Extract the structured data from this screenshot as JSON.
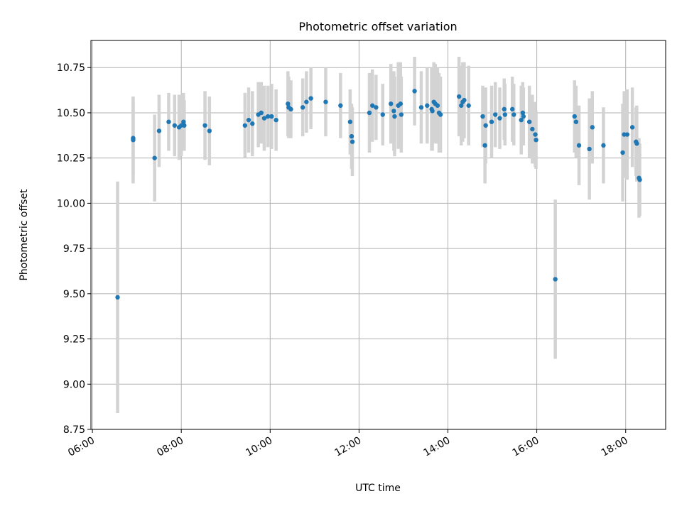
{
  "chart_data": {
    "type": "scatter",
    "title": "Photometric offset variation",
    "xlabel": "UTC time",
    "ylabel": "Photometric offset",
    "x_unit": "time of day (UTC)",
    "xlim": [
      "05:58",
      "18:54"
    ],
    "ylim": [
      8.75,
      10.9
    ],
    "xticks": [
      "06:00",
      "08:00",
      "10:00",
      "12:00",
      "14:00",
      "16:00",
      "18:00"
    ],
    "yticks": [
      "8.75",
      "9.00",
      "9.25",
      "9.50",
      "9.75",
      "10.00",
      "10.25",
      "10.50",
      "10.75"
    ],
    "grid": true,
    "legend": "none",
    "colors": {
      "point": "#1f77b4",
      "errorbar": "#d3d3d3",
      "grid": "#b0b0b0"
    },
    "points": [
      {
        "t": "06:34",
        "y": 9.48,
        "err": 0.64
      },
      {
        "t": "06:55",
        "y": 10.35,
        "err": 0.24
      },
      {
        "t": "06:55",
        "y": 10.36,
        "err": 0.2
      },
      {
        "t": "07:24",
        "y": 10.25,
        "err": 0.24
      },
      {
        "t": "07:30",
        "y": 10.4,
        "err": 0.2
      },
      {
        "t": "07:43",
        "y": 10.45,
        "err": 0.16
      },
      {
        "t": "07:51",
        "y": 10.43,
        "err": 0.17
      },
      {
        "t": "07:57",
        "y": 10.42,
        "err": 0.18
      },
      {
        "t": "08:00",
        "y": 10.43,
        "err": 0.17
      },
      {
        "t": "08:03",
        "y": 10.45,
        "err": 0.16
      },
      {
        "t": "08:04",
        "y": 10.43,
        "err": 0.14
      },
      {
        "t": "08:32",
        "y": 10.43,
        "err": 0.19
      },
      {
        "t": "08:38",
        "y": 10.4,
        "err": 0.19
      },
      {
        "t": "09:26",
        "y": 10.43,
        "err": 0.18
      },
      {
        "t": "09:31",
        "y": 10.46,
        "err": 0.18
      },
      {
        "t": "09:36",
        "y": 10.44,
        "err": 0.18
      },
      {
        "t": "09:44",
        "y": 10.49,
        "err": 0.18
      },
      {
        "t": "09:48",
        "y": 10.5,
        "err": 0.17
      },
      {
        "t": "09:52",
        "y": 10.47,
        "err": 0.18
      },
      {
        "t": "09:57",
        "y": 10.48,
        "err": 0.17
      },
      {
        "t": "10:02",
        "y": 10.48,
        "err": 0.18
      },
      {
        "t": "10:08",
        "y": 10.46,
        "err": 0.17
      },
      {
        "t": "10:24",
        "y": 10.55,
        "err": 0.18
      },
      {
        "t": "10:25",
        "y": 10.53,
        "err": 0.17
      },
      {
        "t": "10:28",
        "y": 10.52,
        "err": 0.16
      },
      {
        "t": "10:44",
        "y": 10.53,
        "err": 0.16
      },
      {
        "t": "10:49",
        "y": 10.56,
        "err": 0.17
      },
      {
        "t": "10:55",
        "y": 10.58,
        "err": 0.17
      },
      {
        "t": "11:15",
        "y": 10.56,
        "err": 0.19
      },
      {
        "t": "11:35",
        "y": 10.54,
        "err": 0.18
      },
      {
        "t": "11:48",
        "y": 10.45,
        "err": 0.18
      },
      {
        "t": "11:50",
        "y": 10.37,
        "err": 0.18
      },
      {
        "t": "11:51",
        "y": 10.34,
        "err": 0.19
      },
      {
        "t": "12:14",
        "y": 10.5,
        "err": 0.22
      },
      {
        "t": "12:18",
        "y": 10.54,
        "err": 0.2
      },
      {
        "t": "12:23",
        "y": 10.53,
        "err": 0.18
      },
      {
        "t": "12:32",
        "y": 10.49,
        "err": 0.17
      },
      {
        "t": "12:43",
        "y": 10.55,
        "err": 0.22
      },
      {
        "t": "12:47",
        "y": 10.51,
        "err": 0.22
      },
      {
        "t": "12:48",
        "y": 10.48,
        "err": 0.22
      },
      {
        "t": "12:53",
        "y": 10.54,
        "err": 0.24
      },
      {
        "t": "12:56",
        "y": 10.55,
        "err": 0.23
      },
      {
        "t": "12:57",
        "y": 10.49,
        "err": 0.21
      },
      {
        "t": "13:15",
        "y": 10.62,
        "err": 0.19
      },
      {
        "t": "13:24",
        "y": 10.53,
        "err": 0.2
      },
      {
        "t": "13:32",
        "y": 10.54,
        "err": 0.21
      },
      {
        "t": "13:38",
        "y": 10.52,
        "err": 0.23
      },
      {
        "t": "13:39",
        "y": 10.51,
        "err": 0.22
      },
      {
        "t": "13:41",
        "y": 10.56,
        "err": 0.22
      },
      {
        "t": "13:43",
        "y": 10.55,
        "err": 0.22
      },
      {
        "t": "13:46",
        "y": 10.54,
        "err": 0.21
      },
      {
        "t": "13:48",
        "y": 10.5,
        "err": 0.22
      },
      {
        "t": "13:50",
        "y": 10.49,
        "err": 0.21
      },
      {
        "t": "14:15",
        "y": 10.59,
        "err": 0.22
      },
      {
        "t": "14:18",
        "y": 10.54,
        "err": 0.22
      },
      {
        "t": "14:20",
        "y": 10.56,
        "err": 0.22
      },
      {
        "t": "14:22",
        "y": 10.57,
        "err": 0.21
      },
      {
        "t": "14:28",
        "y": 10.54,
        "err": 0.22
      },
      {
        "t": "14:47",
        "y": 10.48,
        "err": 0.17
      },
      {
        "t": "14:50",
        "y": 10.32,
        "err": 0.21
      },
      {
        "t": "14:51",
        "y": 10.43,
        "err": 0.21
      },
      {
        "t": "14:59",
        "y": 10.45,
        "err": 0.2
      },
      {
        "t": "15:04",
        "y": 10.49,
        "err": 0.18
      },
      {
        "t": "15:10",
        "y": 10.47,
        "err": 0.17
      },
      {
        "t": "15:16",
        "y": 10.52,
        "err": 0.17
      },
      {
        "t": "15:17",
        "y": 10.49,
        "err": 0.17
      },
      {
        "t": "15:27",
        "y": 10.52,
        "err": 0.18
      },
      {
        "t": "15:29",
        "y": 10.49,
        "err": 0.17
      },
      {
        "t": "15:39",
        "y": 10.46,
        "err": 0.19
      },
      {
        "t": "15:41",
        "y": 10.5,
        "err": 0.17
      },
      {
        "t": "15:42",
        "y": 10.48,
        "err": 0.16
      },
      {
        "t": "15:50",
        "y": 10.45,
        "err": 0.2
      },
      {
        "t": "15:54",
        "y": 10.41,
        "err": 0.19
      },
      {
        "t": "15:58",
        "y": 10.38,
        "err": 0.18
      },
      {
        "t": "15:59",
        "y": 10.35,
        "err": 0.16
      },
      {
        "t": "16:25",
        "y": 9.58,
        "err": 0.44
      },
      {
        "t": "16:51",
        "y": 10.48,
        "err": 0.2
      },
      {
        "t": "16:53",
        "y": 10.45,
        "err": 0.2
      },
      {
        "t": "16:57",
        "y": 10.32,
        "err": 0.22
      },
      {
        "t": "17:11",
        "y": 10.3,
        "err": 0.28
      },
      {
        "t": "17:15",
        "y": 10.42,
        "err": 0.2
      },
      {
        "t": "17:30",
        "y": 10.32,
        "err": 0.21
      },
      {
        "t": "17:56",
        "y": 10.28,
        "err": 0.27
      },
      {
        "t": "17:58",
        "y": 10.38,
        "err": 0.24
      },
      {
        "t": "18:02",
        "y": 10.38,
        "err": 0.25
      },
      {
        "t": "18:09",
        "y": 10.42,
        "err": 0.22
      },
      {
        "t": "18:14",
        "y": 10.34,
        "err": 0.19
      },
      {
        "t": "18:15",
        "y": 10.33,
        "err": 0.21
      },
      {
        "t": "18:18",
        "y": 10.14,
        "err": 0.22
      },
      {
        "t": "18:19",
        "y": 10.13,
        "err": 0.2
      }
    ]
  }
}
